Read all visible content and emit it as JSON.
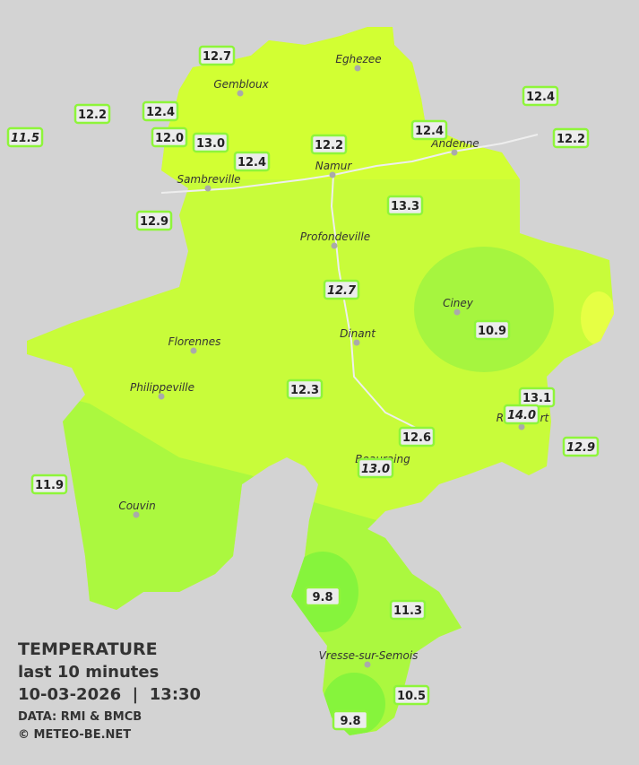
{
  "legend": {
    "title": "TEMPERATURE",
    "subtitle": "last 10 minutes",
    "datetime": "10-03-2026  |  13:30",
    "source": "DATA: RMI & BMCB",
    "credit": "© METEO-BE.NET"
  },
  "cities": [
    "Eghezee",
    "Gembloux",
    "Andenne",
    "Namur",
    "Sambreville",
    "Profondeville",
    "Ciney",
    "Dinant",
    "Florennes",
    "Philippeville",
    "Rochefort",
    "Beauraing",
    "Couvin",
    "Vresse-sur-Semois"
  ],
  "stations": [
    {
      "label": "12.7"
    },
    {
      "label": "12.2"
    },
    {
      "label": "12.4"
    },
    {
      "label": "11.5",
      "italic": true
    },
    {
      "label": "12.0"
    },
    {
      "label": "13.0"
    },
    {
      "label": "12.4"
    },
    {
      "label": "12.2"
    },
    {
      "label": "12.4"
    },
    {
      "label": "12.4"
    },
    {
      "label": "12.2"
    },
    {
      "label": "13.3"
    },
    {
      "label": "12.9"
    },
    {
      "label": "12.7",
      "italic": true
    },
    {
      "label": "10.9"
    },
    {
      "label": "12.3"
    },
    {
      "label": "13.1"
    },
    {
      "label": "14.0",
      "italic": true
    },
    {
      "label": "12.6"
    },
    {
      "label": "12.9",
      "italic": true
    },
    {
      "label": "13.0",
      "italic": true
    },
    {
      "label": "11.9"
    },
    {
      "label": "9.8"
    },
    {
      "label": "11.3"
    },
    {
      "label": "10.5"
    },
    {
      "label": "9.8"
    }
  ]
}
